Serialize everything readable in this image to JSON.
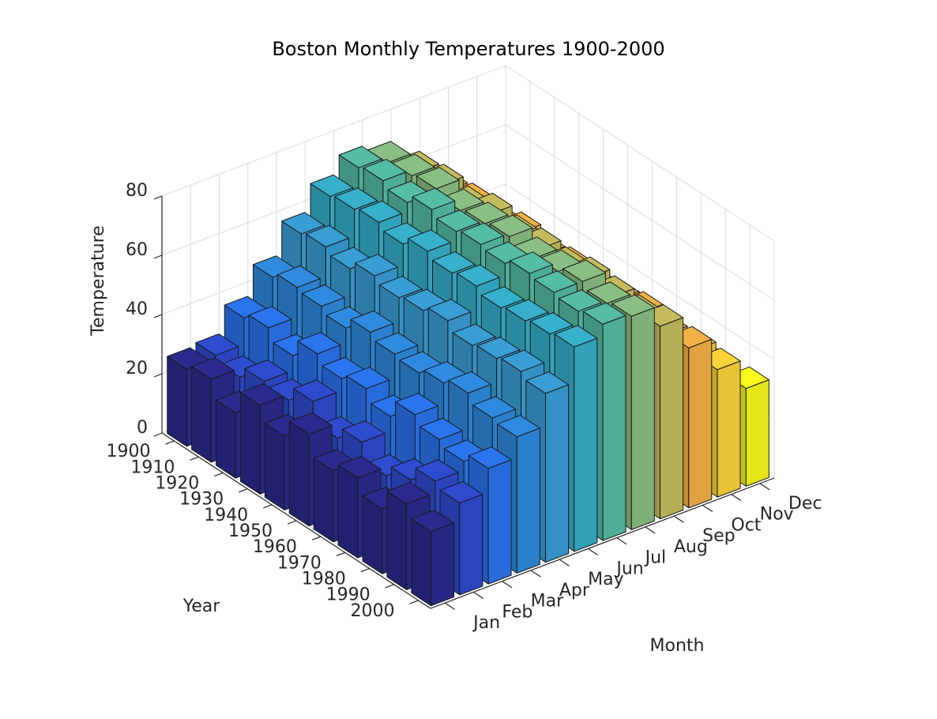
{
  "chart_data": {
    "type": "bar3d",
    "title": "Boston Monthly Temperatures 1900-2000",
    "xlabel": "Month",
    "ylabel": "Year",
    "zlabel": "Temperature",
    "categories": [
      "1900",
      "1910",
      "1920",
      "1930",
      "1940",
      "1950",
      "1960",
      "1970",
      "1980",
      "1990",
      "2000"
    ],
    "series": [
      {
        "name": "Jan",
        "color": "#2c2a8e",
        "values": [
          26,
          28,
          22,
          30,
          25,
          31,
          24,
          27,
          22,
          29,
          25
        ]
      },
      {
        "name": "Feb",
        "color": "#2f4bd0",
        "values": [
          27,
          25,
          29,
          28,
          33,
          26,
          30,
          24,
          28,
          33,
          31
        ]
      },
      {
        "name": "Mar",
        "color": "#2a74ee",
        "values": [
          36,
          38,
          34,
          40,
          37,
          39,
          35,
          41,
          38,
          36,
          39
        ]
      },
      {
        "name": "Apr",
        "color": "#2f8be0",
        "values": [
          46,
          48,
          47,
          45,
          49,
          47,
          46,
          48,
          50,
          47,
          46
        ]
      },
      {
        "name": "May",
        "color": "#3a9ed6",
        "values": [
          57,
          58,
          56,
          59,
          57,
          58,
          60,
          57,
          58,
          59,
          57
        ]
      },
      {
        "name": "Jun",
        "color": "#36b0cb",
        "values": [
          66,
          67,
          68,
          66,
          69,
          67,
          68,
          66,
          67,
          68,
          69
        ]
      },
      {
        "name": "Jul",
        "color": "#55bca5",
        "values": [
          72,
          73,
          71,
          74,
          72,
          73,
          72,
          74,
          73,
          72,
          73
        ]
      },
      {
        "name": "Aug",
        "color": "#8abf84",
        "values": [
          70,
          71,
          72,
          70,
          71,
          72,
          70,
          71,
          73,
          71,
          72
        ]
      },
      {
        "name": "Sep",
        "color": "#c4bc5c",
        "values": [
          63,
          64,
          62,
          65,
          63,
          64,
          63,
          65,
          64,
          63,
          65
        ]
      },
      {
        "name": "Oct",
        "color": "#f3b145",
        "values": [
          53,
          54,
          52,
          55,
          53,
          54,
          52,
          54,
          55,
          53,
          54
        ]
      },
      {
        "name": "Nov",
        "color": "#fbd43a",
        "values": [
          42,
          43,
          44,
          41,
          43,
          42,
          44,
          43,
          42,
          44,
          43
        ]
      },
      {
        "name": "Dec",
        "color": "#f8fa1a",
        "values": [
          31,
          29,
          32,
          30,
          33,
          28,
          31,
          30,
          32,
          29,
          33
        ]
      }
    ],
    "zlim": [
      0,
      80
    ],
    "zticks": [
      0,
      20,
      40,
      60,
      80
    ],
    "grid": true
  }
}
